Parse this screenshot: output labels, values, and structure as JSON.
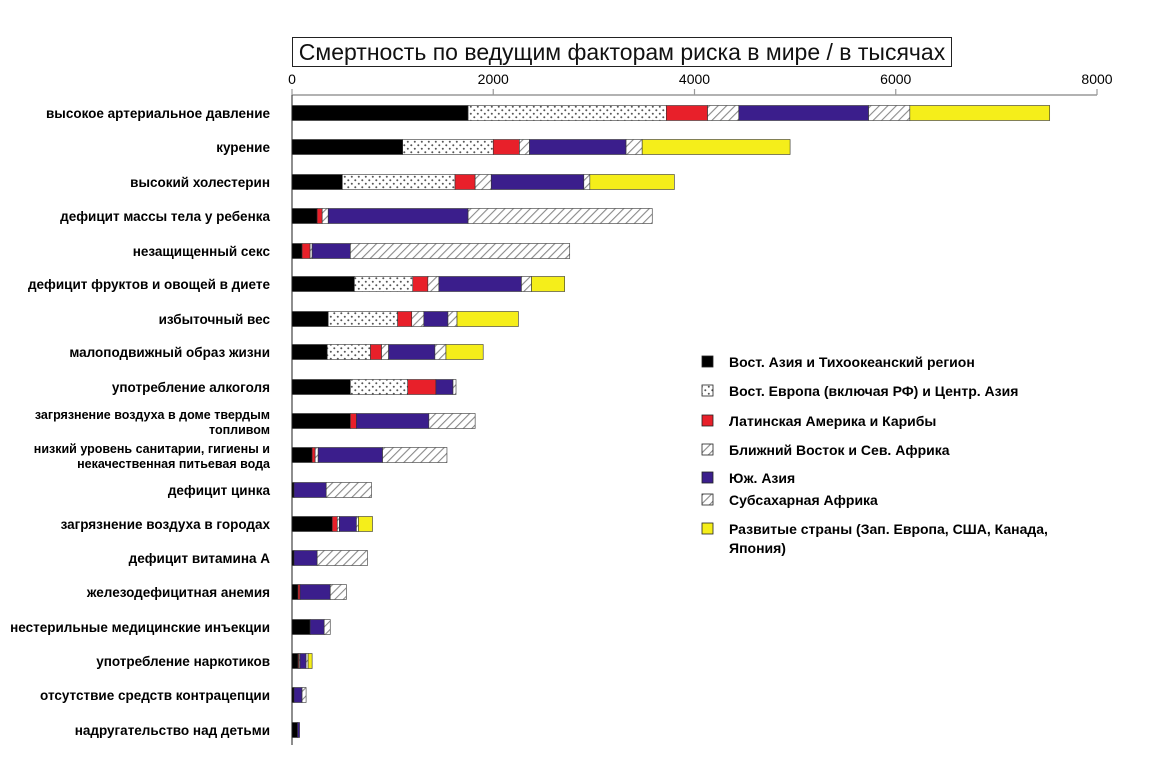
{
  "chart_data": {
    "type": "bar",
    "orientation": "horizontal",
    "stacked": true,
    "title": "Смертность по ведущим факторам риска в мире / в тысячах",
    "xlim": [
      0,
      8000
    ],
    "xticks": [
      "0",
      "2000",
      "4000",
      "6000",
      "8000"
    ],
    "grid": false,
    "legend_position": "right",
    "categories": [
      [
        "высокое артериальное давление"
      ],
      [
        "курение"
      ],
      [
        "высокий холестерин"
      ],
      [
        "дефицит массы тела у ребенка"
      ],
      [
        "незащищенный секс"
      ],
      [
        "дефицит фруктов и овощей в диете"
      ],
      [
        "избыточный вес"
      ],
      [
        "малоподвижный образ жизни"
      ],
      [
        "употребление алкоголя"
      ],
      [
        "загрязнение воздуха в доме твердым",
        "топливом"
      ],
      [
        "низкий уровень санитарии, гигиены и",
        "некачественная питьевая вода"
      ],
      [
        "дефицит цинка"
      ],
      [
        "загрязнение воздуха в городах"
      ],
      [
        "дефицит витамина А"
      ],
      [
        "железодефицитная анемия"
      ],
      [
        "нестерильные медицинские инъекции"
      ],
      [
        "употребление наркотиков"
      ],
      [
        "отсутствие средств контрацепции"
      ],
      [
        "надругательство над детьми"
      ]
    ],
    "series": [
      {
        "name": "Вост. Азия и Тихоокеанский регион",
        "pattern": "solid-black",
        "values": [
          1750,
          1100,
          500,
          250,
          100,
          620,
          360,
          350,
          580,
          580,
          200,
          20,
          400,
          20,
          60,
          180,
          60,
          20,
          55
        ]
      },
      {
        "name": "Вост. Европа (включая РФ) и Центр. Азия",
        "pattern": "dots",
        "values": [
          1970,
          900,
          1120,
          0,
          0,
          580,
          690,
          430,
          570,
          0,
          0,
          0,
          0,
          0,
          0,
          0,
          0,
          0,
          0
        ]
      },
      {
        "name": "Латинская Америка и Карибы",
        "pattern": "solid-red",
        "values": [
          410,
          260,
          200,
          50,
          80,
          150,
          140,
          110,
          280,
          60,
          30,
          0,
          50,
          0,
          20,
          0,
          10,
          0,
          0
        ]
      },
      {
        "name": "Ближний Восток и Сев. Африка",
        "pattern": "hatch-grey",
        "values": [
          310,
          100,
          160,
          60,
          20,
          110,
          120,
          70,
          0,
          0,
          30,
          0,
          20,
          0,
          0,
          0,
          10,
          0,
          0
        ]
      },
      {
        "name": "Юж. Азия",
        "pattern": "solid-purple",
        "values": [
          1290,
          960,
          920,
          1390,
          380,
          820,
          240,
          460,
          170,
          720,
          640,
          320,
          170,
          230,
          300,
          140,
          60,
          80,
          20
        ]
      },
      {
        "name": "Субсахарная Африка",
        "pattern": "hatch-grey",
        "values": [
          410,
          160,
          60,
          1830,
          2180,
          100,
          90,
          110,
          30,
          460,
          640,
          450,
          20,
          500,
          160,
          60,
          20,
          40,
          0
        ]
      },
      {
        "name": "Развитые страны (Зап. Европа, США, Канада, Япония)",
        "pattern": "solid-yellow",
        "values": [
          1390,
          1470,
          840,
          0,
          0,
          330,
          610,
          370,
          0,
          0,
          0,
          0,
          140,
          0,
          0,
          0,
          40,
          0,
          0
        ]
      }
    ]
  },
  "legend": {
    "items": [
      [
        "Вост. Азия и Тихоокеанский регион"
      ],
      [
        "Вост. Европа (включая РФ) и Центр. Азия"
      ],
      [
        "Латинская Америка и Карибы"
      ],
      [
        "Ближний Восток и Сев. Африка"
      ],
      [
        "Юж. Азия"
      ],
      [
        "Субсахарная Африка"
      ],
      [
        "Развитые страны (Зап. Европа, США, Канада,",
        "Япония)"
      ]
    ]
  },
  "colors": {
    "black": "#000000",
    "red": "#e8202a",
    "purple": "#3b1e8c",
    "yellow": "#f5ee1a",
    "hatch": "#8a8a8a",
    "dots": "#555555"
  }
}
